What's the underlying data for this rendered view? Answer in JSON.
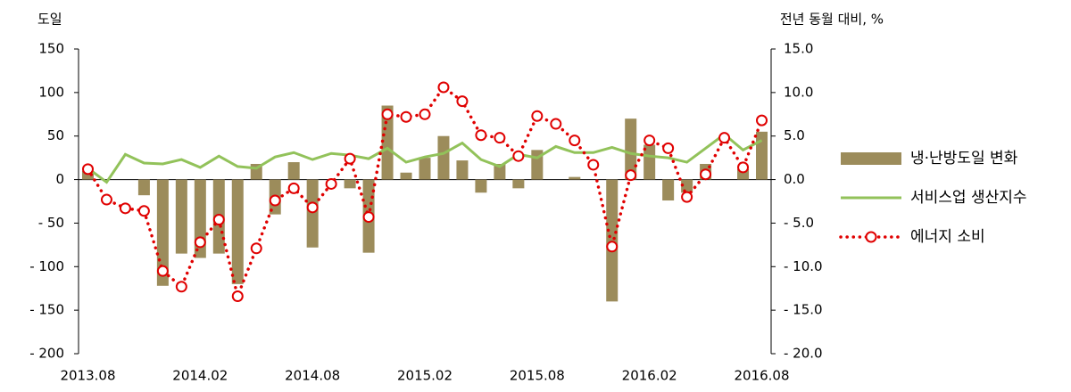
{
  "chart_data": {
    "type": "bar_line",
    "y_label": "도일",
    "y2_label": "전년 동월 대비, %",
    "categories": [
      "2013.08",
      null,
      null,
      null,
      null,
      null,
      "2014.02",
      null,
      null,
      null,
      null,
      null,
      "2014.08",
      null,
      null,
      null,
      null,
      null,
      "2015.02",
      null,
      null,
      null,
      null,
      null,
      "2015.08",
      null,
      null,
      null,
      null,
      null,
      "2016.02",
      null,
      null,
      null,
      null,
      null,
      "2016.08"
    ],
    "ylim": [
      -200,
      150
    ],
    "yticks": [
      {
        "value": -200,
        "label": "- 200"
      },
      {
        "value": -150,
        "label": "- 150"
      },
      {
        "value": -100,
        "label": "- 100"
      },
      {
        "value": -50,
        "label": "- 50"
      },
      0,
      50,
      100,
      150
    ],
    "y2lim": [
      -20,
      15
    ],
    "y2ticks": [
      {
        "value": -20,
        "label": "- 20.0"
      },
      {
        "value": -15,
        "label": "- 15.0"
      },
      {
        "value": -10,
        "label": "- 10.0"
      },
      {
        "value": -5,
        "label": "- 5.0"
      },
      {
        "value": 0,
        "label": "0.0"
      },
      {
        "value": 5,
        "label": "5.0"
      },
      {
        "value": 10,
        "label": "10.0"
      },
      {
        "value": 15,
        "label": "15.0"
      }
    ],
    "series": [
      {
        "name": "냉·난방도일 변화",
        "kind": "bar",
        "color": "#9c8c5b",
        "values": [
          10,
          0,
          0,
          -18,
          -122,
          -85,
          -90,
          -85,
          -120,
          18,
          -40,
          20,
          -78,
          0,
          -10,
          -84,
          85,
          8,
          25,
          50,
          22,
          -15,
          18,
          -10,
          34,
          0,
          3,
          0,
          -140,
          70,
          40,
          -24,
          -15,
          18,
          0,
          12,
          55
        ]
      },
      {
        "name": "서비스업 생산지수",
        "kind": "line",
        "axis": "y2",
        "color": "#92c25a",
        "values": [
          1.3,
          -0.3,
          2.9,
          1.9,
          1.8,
          2.3,
          1.4,
          2.7,
          1.5,
          1.3,
          2.6,
          3.1,
          2.3,
          3.0,
          2.8,
          2.4,
          3.6,
          2.0,
          2.6,
          3.0,
          4.2,
          2.3,
          1.5,
          2.9,
          2.5,
          3.8,
          3.1,
          3.1,
          3.7,
          3.0,
          2.7,
          2.5,
          2.0,
          3.6,
          5.2,
          3.4,
          4.5
        ]
      },
      {
        "name": "에너지 소비",
        "kind": "dotted",
        "axis": "y2",
        "color": "#e00000",
        "values": [
          1.2,
          -2.3,
          -3.3,
          -3.6,
          -10.5,
          -12.3,
          -7.2,
          -4.6,
          -13.4,
          -7.9,
          -2.4,
          -1.0,
          -3.2,
          -0.5,
          2.4,
          -4.3,
          7.5,
          7.2,
          7.5,
          10.6,
          9.0,
          5.1,
          4.8,
          2.7,
          7.3,
          6.4,
          4.5,
          1.7,
          -7.7,
          0.5,
          4.5,
          3.6,
          -2.0,
          0.6,
          4.8,
          1.4,
          6.8
        ]
      }
    ]
  }
}
